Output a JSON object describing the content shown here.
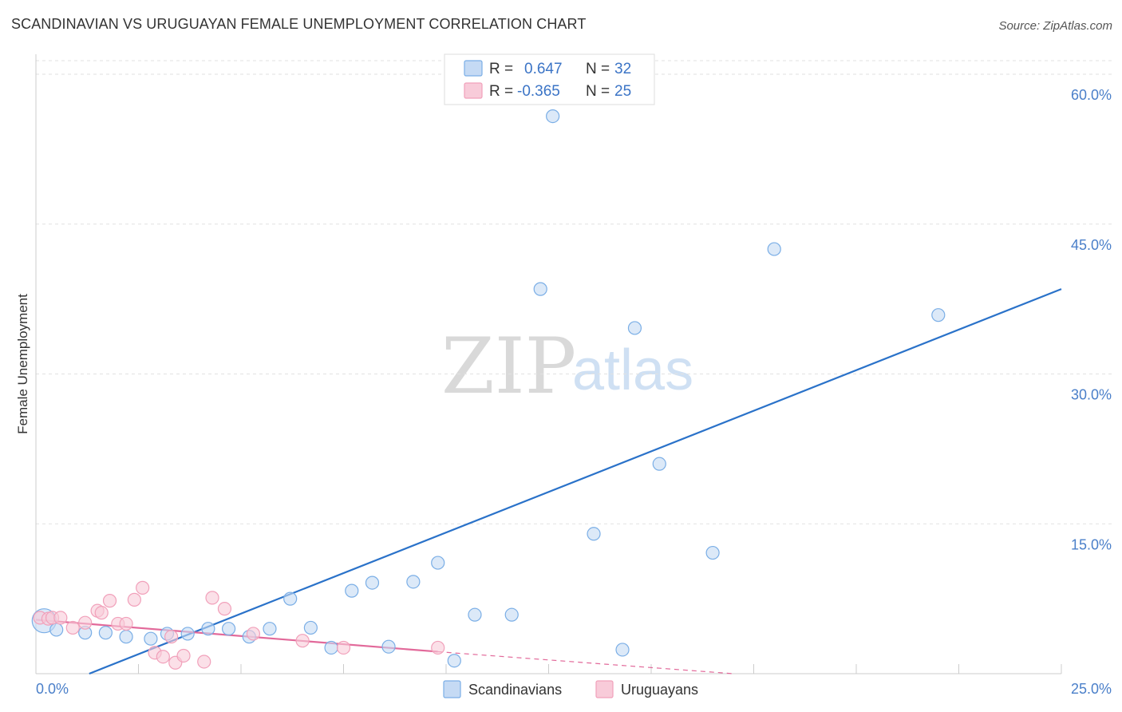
{
  "chart_data": {
    "type": "scatter",
    "title": "SCANDINAVIAN VS URUGUAYAN FEMALE UNEMPLOYMENT CORRELATION CHART",
    "source": "Source: ZipAtlas.com",
    "xlabel": "",
    "ylabel": "Female Unemployment",
    "xlim": [
      0,
      25
    ],
    "ylim": [
      0,
      62
    ],
    "x_tick_labels": [
      "0.0%",
      "25.0%"
    ],
    "y_ticks": [
      15,
      30,
      45,
      60
    ],
    "y_tick_labels": [
      "15.0%",
      "30.0%",
      "45.0%",
      "60.0%"
    ],
    "grid": true,
    "legend": {
      "placement": "top-center",
      "rows": [
        {
          "series": "Scandinavians",
          "r_label": "R =",
          "r_value": "0.647",
          "n_label": "N =",
          "n_value": "32"
        },
        {
          "series": "Uruguayans",
          "r_label": "R =",
          "r_value": "-0.365",
          "n_label": "N =",
          "n_value": "25"
        }
      ]
    },
    "watermark": {
      "zip": "ZIP",
      "atlas": "atlas"
    },
    "series": [
      {
        "name": "Scandinavians",
        "color": "#7aaee6",
        "fill": "#c5daf4",
        "line_color": "#2a72c9",
        "trend": {
          "x0": 1.3,
          "y0": 0.0,
          "x1": 25.0,
          "y1": 38.5
        },
        "points": [
          {
            "x": 0.2,
            "y": 5.3,
            "size": "large"
          },
          {
            "x": 0.5,
            "y": 4.4
          },
          {
            "x": 1.2,
            "y": 4.1
          },
          {
            "x": 1.7,
            "y": 4.1
          },
          {
            "x": 2.2,
            "y": 3.7
          },
          {
            "x": 2.8,
            "y": 3.5
          },
          {
            "x": 3.2,
            "y": 4.0
          },
          {
            "x": 3.7,
            "y": 4.0
          },
          {
            "x": 4.2,
            "y": 4.5
          },
          {
            "x": 4.7,
            "y": 4.5
          },
          {
            "x": 5.2,
            "y": 3.7
          },
          {
            "x": 5.7,
            "y": 4.5
          },
          {
            "x": 6.2,
            "y": 7.5
          },
          {
            "x": 6.7,
            "y": 4.6
          },
          {
            "x": 7.2,
            "y": 2.6
          },
          {
            "x": 7.7,
            "y": 8.3
          },
          {
            "x": 8.2,
            "y": 9.1
          },
          {
            "x": 8.6,
            "y": 2.7
          },
          {
            "x": 9.2,
            "y": 9.2
          },
          {
            "x": 9.8,
            "y": 11.1
          },
          {
            "x": 10.2,
            "y": 1.3
          },
          {
            "x": 10.7,
            "y": 5.9
          },
          {
            "x": 11.6,
            "y": 5.9
          },
          {
            "x": 12.3,
            "y": 38.5
          },
          {
            "x": 12.6,
            "y": 55.8
          },
          {
            "x": 13.6,
            "y": 14.0
          },
          {
            "x": 14.3,
            "y": 2.4
          },
          {
            "x": 14.6,
            "y": 34.6
          },
          {
            "x": 15.2,
            "y": 21.0
          },
          {
            "x": 16.5,
            "y": 12.1
          },
          {
            "x": 18.0,
            "y": 42.5
          },
          {
            "x": 22.0,
            "y": 35.9
          }
        ]
      },
      {
        "name": "Uruguayans",
        "color": "#f1a0ba",
        "fill": "#f8cbd9",
        "line_color": "#e2699a",
        "trend": {
          "x0": 0.0,
          "y0": 5.4,
          "x1": 9.8,
          "y1": 2.2
        },
        "trend_dashed": {
          "x0": 9.8,
          "y0": 2.2,
          "x1": 17.0,
          "y1": 0.0
        },
        "points": [
          {
            "x": 0.1,
            "y": 5.6
          },
          {
            "x": 0.3,
            "y": 5.5
          },
          {
            "x": 0.4,
            "y": 5.6
          },
          {
            "x": 0.6,
            "y": 5.6
          },
          {
            "x": 0.9,
            "y": 4.6
          },
          {
            "x": 1.2,
            "y": 5.1
          },
          {
            "x": 1.5,
            "y": 6.3
          },
          {
            "x": 1.6,
            "y": 6.1
          },
          {
            "x": 1.8,
            "y": 7.3
          },
          {
            "x": 2.0,
            "y": 5.0
          },
          {
            "x": 2.2,
            "y": 5.0
          },
          {
            "x": 2.4,
            "y": 7.4
          },
          {
            "x": 2.6,
            "y": 8.6
          },
          {
            "x": 2.9,
            "y": 2.1
          },
          {
            "x": 3.1,
            "y": 1.7
          },
          {
            "x": 3.3,
            "y": 3.7
          },
          {
            "x": 3.4,
            "y": 1.1
          },
          {
            "x": 3.6,
            "y": 1.8
          },
          {
            "x": 4.1,
            "y": 1.2
          },
          {
            "x": 4.3,
            "y": 7.6
          },
          {
            "x": 4.6,
            "y": 6.5
          },
          {
            "x": 5.3,
            "y": 4.0
          },
          {
            "x": 6.5,
            "y": 3.3
          },
          {
            "x": 7.5,
            "y": 2.6
          },
          {
            "x": 9.8,
            "y": 2.6
          }
        ]
      }
    ],
    "bottom_legend": [
      "Scandinavians",
      "Uruguayans"
    ]
  }
}
